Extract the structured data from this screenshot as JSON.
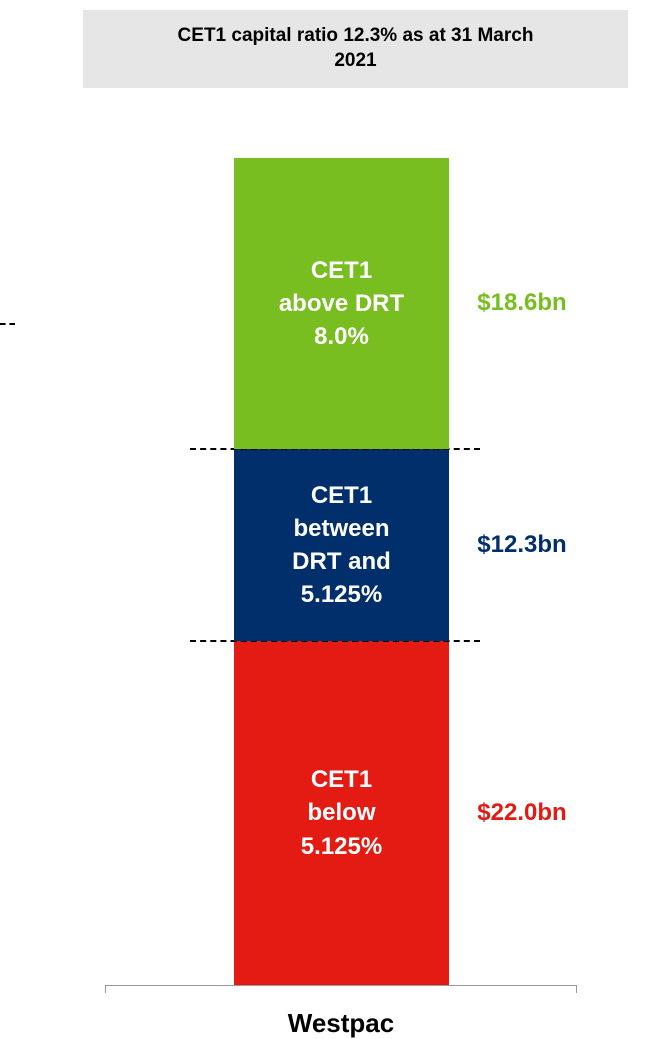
{
  "chart_data": {
    "type": "stacked_bar",
    "title": "CET1 capital ratio 12.3% as at 31 March 2021",
    "categories": [
      "Westpac"
    ],
    "series": [
      {
        "name": "CET1 below 5.125%",
        "color": "#e31b13",
        "values": [
          22.0
        ],
        "value_labels": [
          "$22.0bn"
        ]
      },
      {
        "name": "CET1 between DRT and 5.125%",
        "color": "#002f6c",
        "values": [
          12.3
        ],
        "value_labels": [
          "$12.3bn"
        ]
      },
      {
        "name": "CET1 above DRT 8.0%",
        "color": "#78be20",
        "values": [
          18.6
        ],
        "value_labels": [
          "$18.6bn"
        ]
      }
    ]
  }
}
